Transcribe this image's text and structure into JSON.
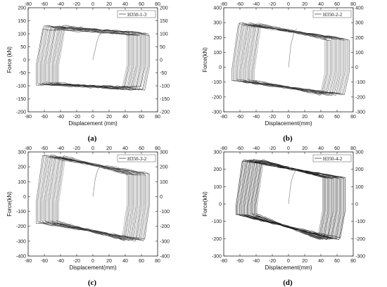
{
  "chart_data": [
    {
      "type": "line",
      "caption": "(a)",
      "legend": "H350-1-3",
      "xlabel": "Displacement (mm)",
      "ylabel": "Force (kN)",
      "xlim": [
        -80,
        80
      ],
      "ylim": [
        -200,
        200
      ],
      "xticks": [
        -80,
        -60,
        -40,
        -20,
        0,
        20,
        40,
        60,
        80
      ],
      "yticks": [
        -200,
        -150,
        -100,
        -50,
        0,
        50,
        100,
        150,
        200
      ],
      "loop": {
        "x_min": -70,
        "x_max": 70,
        "upper_start": 125,
        "upper_end": 100,
        "lower_start": -90,
        "lower_end": -110,
        "cycles": 18,
        "spread": 15
      },
      "initial": {
        "x": [
          0,
          5,
          8,
          12
        ],
        "y": [
          0,
          70,
          95,
          105
        ]
      }
    },
    {
      "type": "line",
      "caption": "(b)",
      "legend": "H350-2-2",
      "xlabel": "Displacement(mm)",
      "ylabel": "Force(kN)",
      "xlim": [
        -80,
        80
      ],
      "ylim": [
        -300,
        400
      ],
      "xticks": [
        -80,
        -60,
        -40,
        -20,
        0,
        20,
        40,
        60,
        80
      ],
      "yticks": [
        -300,
        -200,
        -100,
        0,
        100,
        200,
        300,
        400
      ],
      "loop": {
        "x_min": -70,
        "x_max": 75,
        "upper_start": 290,
        "upper_end": 190,
        "lower_start": -90,
        "lower_end": -180,
        "cycles": 18,
        "spread": 20
      },
      "initial": {
        "x": [
          0,
          3,
          6,
          10
        ],
        "y": [
          0,
          150,
          220,
          260
        ]
      }
    },
    {
      "type": "line",
      "caption": "(c)",
      "legend": "H350-3-2",
      "xlabel": "Displacement(mm)",
      "ylabel": "Force(kN)",
      "xlim": [
        -80,
        80
      ],
      "ylim": [
        -400,
        300
      ],
      "xticks": [
        -80,
        -60,
        -40,
        -20,
        0,
        20,
        40,
        60,
        80
      ],
      "yticks": [
        -400,
        -300,
        -200,
        -100,
        0,
        100,
        200,
        300
      ],
      "loop": {
        "x_min": -70,
        "x_max": 70,
        "upper_start": 270,
        "upper_end": 150,
        "lower_start": -170,
        "lower_end": -290,
        "cycles": 18,
        "spread": 20
      },
      "initial": {
        "x": [
          0,
          3,
          6,
          10
        ],
        "y": [
          0,
          120,
          180,
          205
        ]
      }
    },
    {
      "type": "line",
      "caption": "(d)",
      "legend": "H350-4-2",
      "xlabel": "Displacement(mm)",
      "ylabel": "Force(kN)",
      "xlim": [
        -80,
        80
      ],
      "ylim": [
        -300,
        300
      ],
      "xticks": [
        -80,
        -60,
        -40,
        -20,
        0,
        20,
        40,
        60,
        80
      ],
      "yticks": [
        -300,
        -200,
        -100,
        0,
        100,
        200,
        300
      ],
      "loop": {
        "x_min": -65,
        "x_max": 70,
        "upper_start": 250,
        "upper_end": 150,
        "lower_start": -60,
        "lower_end": -200,
        "cycles": 18,
        "spread": 12
      },
      "initial": {
        "x": [
          0,
          3,
          6,
          10
        ],
        "y": [
          0,
          120,
          170,
          200
        ]
      }
    }
  ]
}
